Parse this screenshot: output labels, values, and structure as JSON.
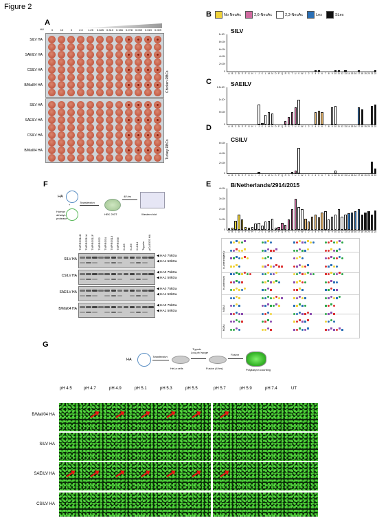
{
  "figure_title": "Figure 2",
  "panels": {
    "A": {
      "letter": "A",
      "top_row_label": "HU",
      "dilutions": [
        "0",
        "10",
        "0",
        "2.0",
        "1.25",
        "0.625",
        "0.313",
        "0.156",
        "0.078",
        "0.039",
        "0.019",
        "0.009"
      ],
      "rows_chicken": [
        "SILV HA",
        "SAEILV HA",
        "CSILV HA",
        "B/Mal04 HA"
      ],
      "rows_turkey": [
        "SILV HA",
        "SAEILV HA",
        "CSILV HA",
        "B/Mal04 HA"
      ],
      "chicken_label": "Chicken RBCs",
      "turkey_label": "Turkey RBCs"
    },
    "B": {
      "letter": "B"
    },
    "C": {
      "letter": "C"
    },
    "D": {
      "letter": "D"
    },
    "E": {
      "letter": "E"
    },
    "F": {
      "letter": "F",
      "schematic": {
        "ha": "HA",
        "protease": "Human airways protease",
        "transfection": "Transfection",
        "time": "48 hrs",
        "cell": "HEK 293T",
        "readout": "Western blot"
      },
      "lanes": [
        "TMPRSS11D",
        "TMPRSS11A",
        "TMPRSS11F",
        "TMPRSS2",
        "TMPRSS4",
        "TMPRSS13",
        "TMPRSS6",
        "KLK5",
        "KLK6",
        "KLK14",
        "Trypsin",
        "pCAGGS HA"
      ],
      "blots": [
        {
          "name": "SILV HA",
          "bands": [
            "HA0 75kDa",
            "HA1 50kDa"
          ]
        },
        {
          "name": "CSILV HA",
          "bands": [
            "HA0 75kDa",
            "HA1 50kDa"
          ]
        },
        {
          "name": "SAEILV HA",
          "bands": [
            "HA0 75kDa",
            "HA1 50kDa"
          ]
        },
        {
          "name": "B/Mal04 HA",
          "bands": [
            "HA0 75kDa",
            "HA1 50kDa"
          ]
        }
      ]
    },
    "G": {
      "letter": "G",
      "schematic": {
        "ha": "HA",
        "transfection": "Transfection",
        "trypsin": "Trypsin",
        "low_ph": "Low pH range",
        "fusion_step": "Fusion",
        "hela": "HeLa cells",
        "fusion_time": "Fusion (4 hrs)",
        "counting": "Polykaryon counting"
      },
      "ph_columns": [
        "pH 4.5",
        "pH 4.7",
        "pH 4.9",
        "pH 5.1",
        "pH 5.3",
        "pH 5.5",
        "pH 5.7",
        "pH 5.9",
        "pH 7.4",
        "UT"
      ],
      "rows": [
        "B/Mal/04 HA",
        "SILV HA",
        "SAEILV HA",
        "CSILV HA"
      ]
    }
  },
  "legend": [
    {
      "label": "No NeuAc",
      "color": "#f0d23a"
    },
    {
      "label": "2,6-NeuAc",
      "color": "#d06aa0"
    },
    {
      "label": "2,3-NeuAc",
      "color": "#ffffff"
    },
    {
      "label": "Lex",
      "color": "#2a6fb5"
    },
    {
      "label": "SLex",
      "color": "#111111"
    }
  ],
  "chart_data": [
    {
      "type": "bar",
      "title": "SILV",
      "y_ticks": [
        "1×10⁴",
        "8×10³",
        "6×10³",
        "4×10³",
        "2×10³",
        "0"
      ],
      "ylim": [
        0,
        10000
      ],
      "categories": [
        "A",
        "B",
        "C",
        "D",
        "E",
        "F",
        "G",
        "H",
        "I",
        "J",
        "K",
        "L",
        "M",
        "N",
        "O",
        "P",
        "Q",
        "R",
        "S",
        "T",
        "U",
        "V",
        "W",
        "1",
        "2",
        "3",
        "4",
        "5",
        "6",
        "7",
        "8",
        "9",
        "10",
        "11",
        "12",
        "13",
        "14",
        "15",
        "16",
        "17",
        "18",
        "19",
        "20",
        "21",
        "22"
      ],
      "values": [
        80,
        60,
        70,
        60,
        50,
        40,
        60,
        50,
        60,
        90,
        70,
        60,
        60,
        50,
        40,
        60,
        70,
        60,
        50,
        60,
        70,
        80,
        90,
        60,
        80,
        70,
        200,
        100,
        60,
        90,
        70,
        60,
        100,
        200,
        80,
        100,
        70,
        60,
        90,
        250,
        70,
        60,
        80,
        90,
        110
      ]
    },
    {
      "type": "bar",
      "title": "SAEILV",
      "y_ticks": [
        "1.5×10⁴",
        "1×10⁴",
        "5×10³",
        "0"
      ],
      "ylim": [
        0,
        15000
      ],
      "categories": [
        "A",
        "B",
        "C",
        "D",
        "E",
        "F",
        "G",
        "H",
        "I",
        "J",
        "K",
        "L",
        "M",
        "N",
        "O",
        "P",
        "Q",
        "R",
        "S",
        "T",
        "U",
        "V",
        "W",
        "1",
        "2",
        "3",
        "4",
        "5",
        "6",
        "7",
        "8",
        "9",
        "10",
        "11",
        "12",
        "13",
        "14",
        "15",
        "16",
        "17",
        "18",
        "19",
        "20",
        "21",
        "22"
      ],
      "values": [
        0,
        0,
        0,
        0,
        0,
        0,
        0,
        0,
        0,
        8000,
        500,
        4000,
        5000,
        4500,
        0,
        0,
        0,
        1500,
        3000,
        5000,
        7000,
        10000,
        0,
        0,
        0,
        0,
        5000,
        5500,
        5000,
        0,
        0,
        7000,
        7500,
        0,
        0,
        0,
        0,
        0,
        0,
        7000,
        6000,
        0,
        0,
        7500,
        8000
      ]
    },
    {
      "type": "bar",
      "title": "CSILV",
      "y_ticks": [
        "6×10³",
        "4×10³",
        "2×10³",
        "0"
      ],
      "ylim": [
        0,
        6000
      ],
      "categories": [
        "A",
        "B",
        "C",
        "D",
        "E",
        "F",
        "G",
        "H",
        "I",
        "J",
        "K",
        "L",
        "M",
        "N",
        "O",
        "P",
        "Q",
        "R",
        "S",
        "T",
        "U",
        "V",
        "W",
        "1",
        "2",
        "3",
        "4",
        "5",
        "6",
        "7",
        "8",
        "9",
        "10",
        "11",
        "12",
        "13",
        "14",
        "15",
        "16",
        "17",
        "18",
        "19",
        "20",
        "21",
        "22"
      ],
      "values": [
        0,
        0,
        0,
        0,
        0,
        0,
        0,
        0,
        0,
        300,
        0,
        0,
        0,
        0,
        0,
        0,
        0,
        0,
        0,
        300,
        600,
        5000,
        0,
        0,
        0,
        0,
        0,
        0,
        0,
        0,
        0,
        0,
        500,
        0,
        0,
        0,
        0,
        0,
        0,
        0,
        0,
        0,
        0,
        2300,
        900
      ]
    },
    {
      "type": "bar",
      "title": "B/Netherlands/2914/2015",
      "y_ticks": [
        "4×10³",
        "3×10³",
        "2×10³",
        "1×10³",
        "0"
      ],
      "ylim": [
        0,
        4000
      ],
      "categories": [
        "A",
        "B",
        "C",
        "D",
        "E",
        "F",
        "G",
        "H",
        "I",
        "J",
        "K",
        "L",
        "M",
        "N",
        "O",
        "P",
        "Q",
        "R",
        "S",
        "T",
        "U",
        "V",
        "W",
        "1",
        "2",
        "3",
        "4",
        "5",
        "6",
        "7",
        "8",
        "9",
        "10",
        "11",
        "12",
        "13",
        "14",
        "15",
        "16",
        "17",
        "18",
        "19",
        "20",
        "21",
        "22"
      ],
      "values": [
        100,
        200,
        900,
        1500,
        1000,
        300,
        200,
        300,
        600,
        700,
        400,
        800,
        900,
        1100,
        200,
        300,
        700,
        500,
        1000,
        2000,
        3000,
        2200,
        2000,
        1100,
        800,
        1300,
        1500,
        1200,
        1700,
        1800,
        1000,
        1300,
        1500,
        2000,
        1300,
        1500,
        1600,
        1700,
        1800,
        2000,
        1500,
        1700,
        1800,
        1500,
        1900
      ]
    }
  ],
  "glycan_panel": {
    "side_labels": [
      "linear",
      "bi-antennary",
      "tri-antennary",
      "NGA3",
      "NGA4"
    ]
  }
}
